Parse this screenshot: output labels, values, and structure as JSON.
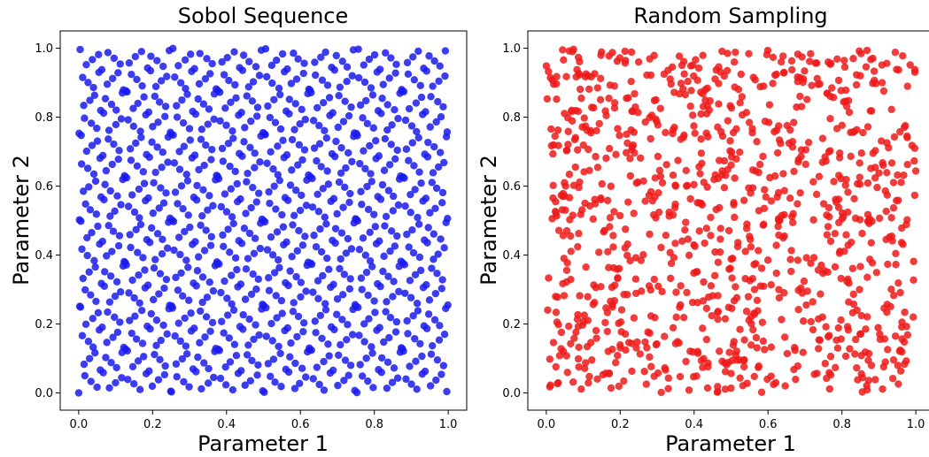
{
  "chart_data": [
    {
      "type": "scatter",
      "title": "Sobol Sequence",
      "xlabel": "Parameter 1",
      "ylabel": "Parameter 2",
      "xlim": [
        -0.05,
        1.05
      ],
      "ylim": [
        -0.05,
        1.05
      ],
      "xticks": [
        "0.0",
        "0.2",
        "0.4",
        "0.6",
        "0.8",
        "1.0"
      ],
      "yticks": [
        "0.0",
        "0.2",
        "0.4",
        "0.6",
        "0.8",
        "1.0"
      ],
      "grid": false,
      "series": [
        {
          "color": "#1a1aee",
          "sampling": "sobol",
          "n_points": 1024
        }
      ]
    },
    {
      "type": "scatter",
      "title": "Random Sampling",
      "xlabel": "Parameter 1",
      "ylabel": "Parameter 2",
      "xlim": [
        -0.05,
        1.05
      ],
      "ylim": [
        -0.05,
        1.05
      ],
      "xticks": [
        "0.0",
        "0.2",
        "0.4",
        "0.6",
        "0.8",
        "1.0"
      ],
      "yticks": [
        "0.0",
        "0.2",
        "0.4",
        "0.6",
        "0.8",
        "1.0"
      ],
      "grid": false,
      "series": [
        {
          "color": "#ee1a1a",
          "sampling": "uniform-random",
          "n_points": 1024
        }
      ]
    }
  ]
}
